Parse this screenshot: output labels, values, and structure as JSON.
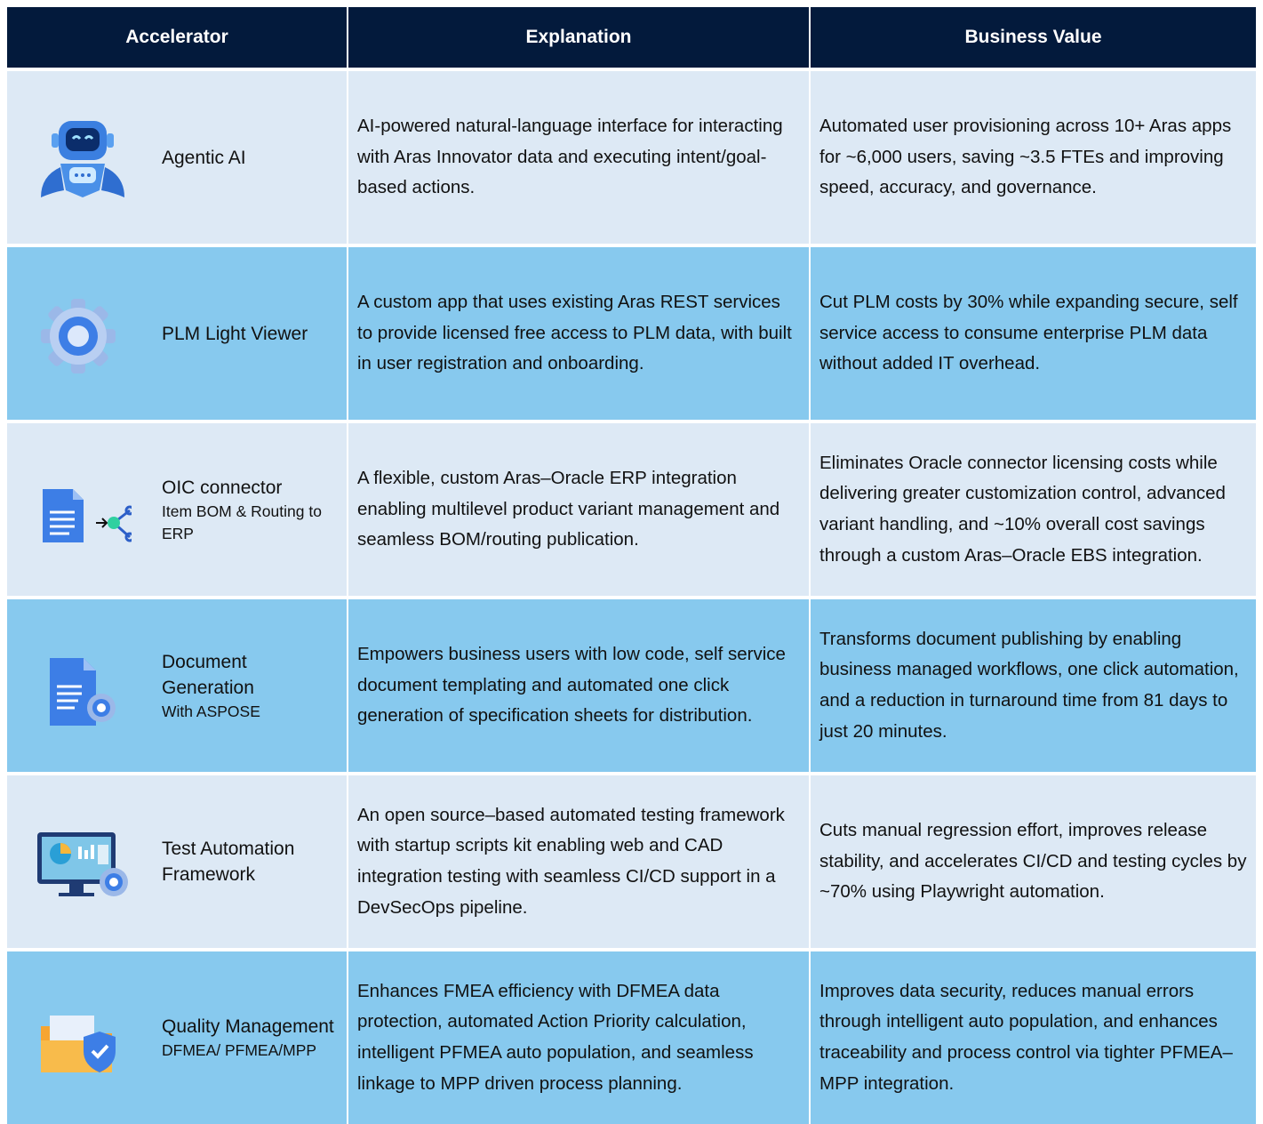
{
  "table": {
    "header": [
      "Accelerator",
      "Explanation",
      "Business Value"
    ],
    "rows": [
      {
        "accelerator": {
          "name": "Agentic AI"
        },
        "explanation": "AI-powered natural-language interface for interacting with Aras Innovator data and executing intent/goal-based actions.",
        "business_value": "Automated user provisioning across 10+ Aras apps for ~6,000 users, saving ~3.5 FTEs and improving speed, accuracy, and governance."
      },
      {
        "accelerator": {
          "name": "PLM Light Viewer"
        },
        "explanation": "A custom app that uses existing Aras REST services to provide licensed free access to PLM data, with built in user registration and onboarding.",
        "business_value": "Cut PLM costs by 30% while expanding secure, self service access to consume enterprise PLM data without added IT overhead."
      },
      {
        "accelerator": {
          "name": "OIC connector",
          "subtitle": "Item BOM & Routing to ERP"
        },
        "explanation": "A flexible, custom Aras–Oracle ERP integration enabling multilevel product variant management and seamless BOM/routing publication.",
        "business_value": "Eliminates Oracle connector licensing costs while delivering greater customization control, advanced variant handling, and ~10% overall cost savings through a custom Aras–Oracle EBS integration."
      },
      {
        "accelerator": {
          "name": "Document Generation",
          "subtitle": "With ASPOSE"
        },
        "explanation": "Empowers business users with low code, self service document templating and automated one click generation of specification sheets for distribution.",
        "business_value": "Transforms document publishing by enabling business managed workflows, one click automation, and a reduction in turnaround time from 81 days to just 20 minutes."
      },
      {
        "accelerator": {
          "name": "Test Automation Framework"
        },
        "explanation": "An open source–based automated testing framework with startup scripts kit enabling web and CAD integration testing with seamless CI/CD support in a DevSecOps pipeline.",
        "business_value": "Cuts manual regression effort, improves release stability, and accelerates CI/CD and testing cycles by ~70% using Playwright automation."
      },
      {
        "accelerator": {
          "name": "Quality Management",
          "subtitle": "DFMEA/ PFMEA/MPP"
        },
        "explanation": "Enhances FMEA efficiency with DFMEA data protection, automated Action Priority calculation, intelligent PFMEA auto population, and seamless linkage to MPP driven process planning.",
        "business_value": "Improves data security, reduces manual errors through intelligent auto population, and enhances traceability and process control via tighter PFMEA–MPP integration."
      }
    ]
  }
}
